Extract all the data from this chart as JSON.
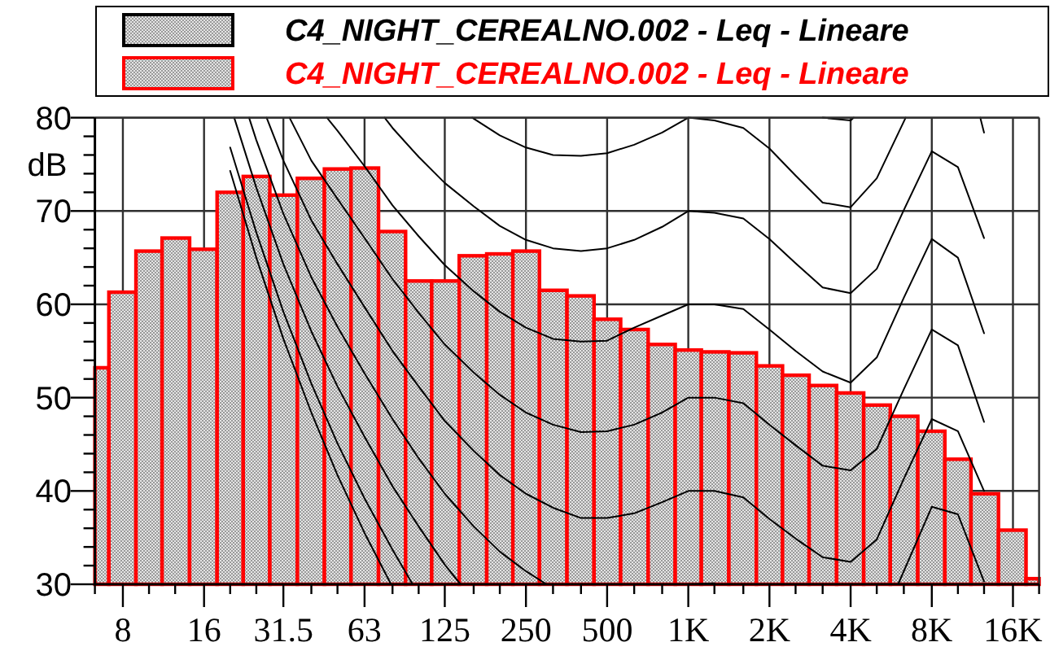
{
  "chart_data": {
    "type": "bar",
    "x": [
      6.3,
      8,
      10,
      12.5,
      16,
      20,
      25,
      31.5,
      40,
      50,
      63,
      80,
      100,
      125,
      160,
      200,
      250,
      315,
      400,
      500,
      630,
      800,
      1000,
      1250,
      1600,
      2000,
      2500,
      3150,
      4000,
      5000,
      6300,
      8000,
      10000,
      12500,
      16000,
      20000
    ],
    "series": [
      {
        "name": "C4_NIGHT_CEREALNO.002 - Leq - Lineare",
        "color": "#000000",
        "values": [
          null,
          null,
          null,
          null,
          null,
          null,
          null,
          null,
          null,
          null,
          null,
          null,
          null,
          null,
          null,
          null,
          null,
          null,
          null,
          null,
          null,
          null,
          null,
          null,
          null,
          null,
          null,
          null,
          null,
          null,
          null,
          null,
          null,
          null,
          null,
          null
        ]
      },
      {
        "name": "C4_NIGHT_CEREALNO.002 - Leq - Lineare",
        "color": "#ff0000",
        "values": [
          53.2,
          61.3,
          65.7,
          67.1,
          65.9,
          72.0,
          73.7,
          71.7,
          73.5,
          74.5,
          74.6,
          67.8,
          62.5,
          62.5,
          65.2,
          65.4,
          65.7,
          61.5,
          60.9,
          58.4,
          57.3,
          55.7,
          55.1,
          54.9,
          54.8,
          53.4,
          52.4,
          51.3,
          50.5,
          49.2,
          48.0,
          46.4,
          43.4,
          39.7,
          35.8,
          30.6
        ]
      },
      {
        "type": "line",
        "color": "#000000",
        "x": [
          20,
          25,
          31.5,
          40,
          50,
          63,
          79
        ],
        "values": [
          74.3,
          65.0,
          56.3,
          48.4,
          41.7,
          35.5,
          30
        ]
      },
      {
        "type": "line",
        "color": "#000000",
        "x": [
          20,
          25,
          31.5,
          40,
          50,
          63,
          80,
          95
        ],
        "values": [
          76.8,
          67.7,
          59.2,
          51.5,
          45.1,
          39.2,
          33.7,
          30
        ]
      },
      {
        "type": "line",
        "color": "#000000",
        "x": [
          20.7,
          25,
          31.5,
          40,
          50,
          63,
          80,
          100,
          125,
          143
        ],
        "values": [
          80,
          72.5,
          64.3,
          57.1,
          51.2,
          45.8,
          40.5,
          36.2,
          32.1,
          30
        ]
      },
      {
        "type": "line",
        "color": "#000000",
        "x": [
          23.5,
          25,
          31.5,
          40,
          50,
          63,
          80,
          100,
          125,
          160,
          200,
          250,
          298,
          600,
          1000,
          1250,
          3000,
          6000,
          8000,
          10000,
          12500
        ],
        "values": [
          80,
          77.6,
          69.7,
          62.9,
          57.6,
          52.6,
          47.7,
          43.5,
          39.7,
          36.2,
          33.5,
          31.4,
          30,
          null,
          30,
          30.1,
          null,
          30,
          38.3,
          37.5,
          30.3
        ]
      },
      {
        "type": "line",
        "color": "#000000",
        "x": [
          27.3,
          31.5,
          40,
          50,
          63,
          80,
          100,
          125,
          160,
          200,
          250,
          315,
          400,
          500,
          630,
          800,
          1000,
          1250,
          1600,
          2000,
          2500,
          3150,
          4000,
          5000,
          6300,
          8000,
          10000,
          12500
        ],
        "values": [
          80,
          75.4,
          69.0,
          64.3,
          59.7,
          55.0,
          51.2,
          47.5,
          44.3,
          41.7,
          39.7,
          38.2,
          37.1,
          37.1,
          37.6,
          38.8,
          40,
          40,
          39.3,
          37.0,
          34.9,
          32.9,
          32.4,
          34.8,
          41.3,
          47.7,
          46.4,
          40.0
        ]
      },
      {
        "type": "line",
        "color": "#000000",
        "x": [
          33.2,
          40,
          50,
          63,
          80,
          100,
          125,
          160,
          200,
          250,
          315,
          400,
          500,
          630,
          800,
          1000,
          1250,
          1600,
          2000,
          2500,
          3150,
          4000,
          5000,
          6300,
          8000,
          10000,
          12500
        ],
        "values": [
          80,
          75.4,
          71.3,
          67.1,
          62.7,
          59.1,
          55.7,
          52.7,
          50.3,
          48.4,
          47.1,
          46.3,
          46.4,
          47.1,
          48.4,
          50,
          50,
          49.4,
          47.1,
          44.9,
          42.7,
          42.2,
          44.5,
          50.9,
          57.3,
          55.6,
          47.4
        ]
      },
      {
        "type": "line",
        "color": "#000000",
        "x": [
          45.7,
          50,
          63,
          80,
          100,
          125,
          160,
          200,
          250,
          315,
          400,
          500,
          630,
          800,
          1000,
          1250,
          1600,
          2000,
          2500,
          3150,
          4000,
          5000,
          6300,
          8000,
          10000,
          12500
        ],
        "values": [
          80,
          78.6,
          74.8,
          70.6,
          67.3,
          64.2,
          61.4,
          59.2,
          57.5,
          56.3,
          56.0,
          56.1,
          57.5,
          58.8,
          60,
          60,
          59.5,
          57.3,
          55.0,
          52.8,
          51.6,
          54.3,
          60.7,
          67.0,
          65.0,
          56.9
        ]
      },
      {
        "type": "line",
        "color": "#000000",
        "x": [
          74.8,
          80,
          100,
          125,
          160,
          200,
          250,
          315,
          400,
          500,
          630,
          800,
          1000,
          1250,
          1600,
          2000,
          2500,
          3150,
          4000,
          5000,
          6300,
          8000,
          10000,
          12500
        ],
        "values": [
          80,
          78.9,
          75.8,
          73.0,
          70.5,
          68.4,
          66.9,
          66.0,
          65.7,
          66.0,
          66.9,
          68.3,
          70,
          69.8,
          69.2,
          67.0,
          64.4,
          61.8,
          61.2,
          63.8,
          70.1,
          76.4,
          74.7,
          67.1
        ]
      },
      {
        "type": "line",
        "color": "#000000",
        "x": [
          158,
          200,
          250,
          315,
          400,
          500,
          630,
          800,
          1000,
          1250,
          1600,
          2000,
          2500,
          3150,
          4000,
          5000,
          6400,
          8000,
          12100,
          12500
        ],
        "values": [
          80,
          78.1,
          76.8,
          76.0,
          75.9,
          76.2,
          77.1,
          78.4,
          80,
          79.7,
          78.9,
          76.7,
          73.8,
          70.9,
          70.4,
          73.5,
          80,
          null,
          80,
          78.4
        ]
      },
      {
        "type": "line",
        "color": "#000000",
        "x": [
          3150,
          4000,
          4110
        ],
        "values": [
          80,
          79.7,
          80
        ]
      }
    ],
    "xlim": [
      6.3,
      20000
    ],
    "ylim": [
      30,
      80
    ],
    "xticks": [
      {
        "value": 6.3,
        "label": null
      },
      8,
      {
        "value": 10,
        "label": null
      },
      {
        "value": 12.5,
        "label": null
      },
      16,
      {
        "value": 20,
        "label": null
      },
      {
        "value": 25,
        "label": null
      },
      31.5,
      {
        "value": 40,
        "label": null
      },
      {
        "value": 50,
        "label": null
      },
      63,
      {
        "value": 80,
        "label": null
      },
      {
        "value": 100,
        "label": null
      },
      125,
      {
        "value": 160,
        "label": null
      },
      {
        "value": 200,
        "label": null
      },
      250,
      {
        "value": 315,
        "label": null
      },
      {
        "value": 400,
        "label": null
      },
      500,
      {
        "value": 630,
        "label": null
      },
      {
        "value": 800,
        "label": null
      },
      {
        "value": 1000,
        "label": "1K"
      },
      {
        "value": 1250,
        "label": null
      },
      {
        "value": 1600,
        "label": null
      },
      {
        "value": 2000,
        "label": "2K"
      },
      {
        "value": 2500,
        "label": null
      },
      {
        "value": 3150,
        "label": null
      },
      {
        "value": 4000,
        "label": "4K"
      },
      {
        "value": 5000,
        "label": null
      },
      {
        "value": 6300,
        "label": null
      },
      {
        "value": 8000,
        "label": "8K"
      },
      {
        "value": 10000,
        "label": null
      },
      {
        "value": 12500,
        "label": null
      },
      {
        "value": 16000,
        "label": "16K"
      },
      {
        "value": 20000,
        "label": null
      }
    ],
    "yticks": [
      30,
      {
        "value": 32,
        "label": null
      },
      {
        "value": 34,
        "label": null
      },
      {
        "value": 36,
        "label": null
      },
      {
        "value": 38,
        "label": null
      },
      40,
      {
        "value": 42,
        "label": null
      },
      {
        "value": 44,
        "label": null
      },
      {
        "value": 46,
        "label": null
      },
      {
        "value": 48,
        "label": null
      },
      50,
      {
        "value": 52,
        "label": null
      },
      {
        "value": 54,
        "label": null
      },
      {
        "value": 56,
        "label": null
      },
      {
        "value": 58,
        "label": null
      },
      60,
      {
        "value": 62,
        "label": null
      },
      {
        "value": 64,
        "label": null
      },
      {
        "value": 66,
        "label": null
      },
      {
        "value": 68,
        "label": null
      },
      70,
      {
        "value": 72,
        "label": null
      },
      {
        "value": 74,
        "label": null
      },
      {
        "value": 76,
        "label": null
      },
      {
        "value": 78,
        "label": null
      },
      80
    ],
    "log": "x",
    "grid": true,
    "legend": "top",
    "ylabel": "dB"
  }
}
